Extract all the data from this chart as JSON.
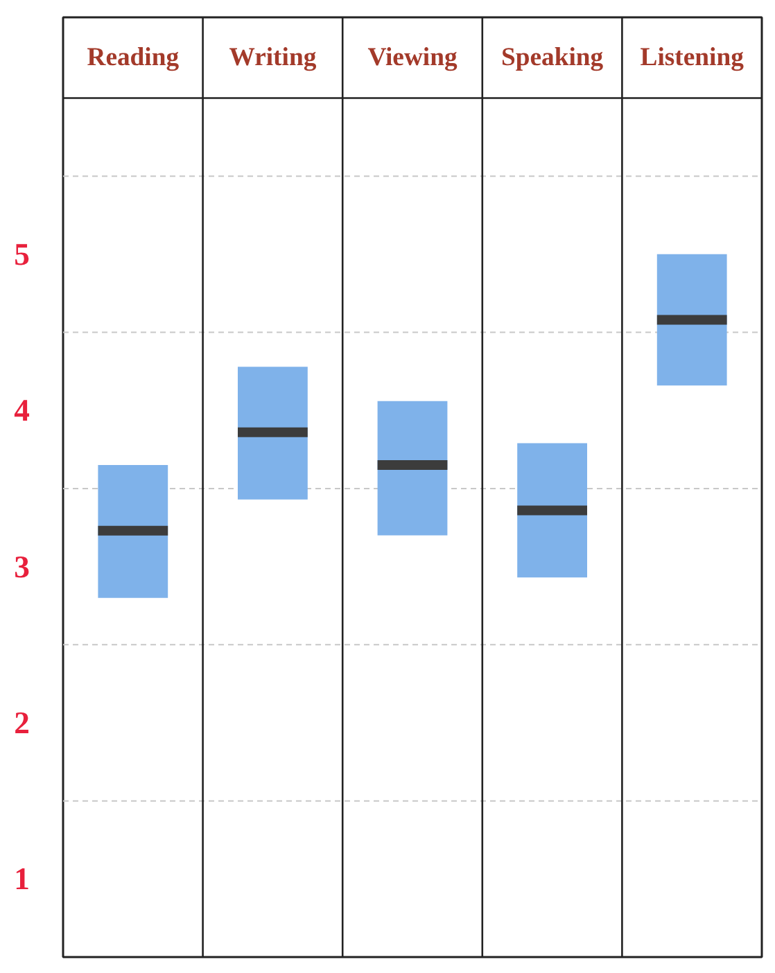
{
  "chart_data": {
    "type": "box",
    "categories": [
      "Reading",
      "Writing",
      "Viewing",
      "Speaking",
      "Listening"
    ],
    "series": [
      {
        "color": "#7fb2ea",
        "boxes": [
          {
            "low": 2.8,
            "q1": 2.8,
            "median": 3.23,
            "q3": 3.65,
            "high": 3.65
          },
          {
            "low": 3.43,
            "q1": 3.43,
            "median": 3.86,
            "q3": 4.28,
            "high": 4.28
          },
          {
            "low": 3.2,
            "q1": 3.2,
            "median": 3.65,
            "q3": 4.06,
            "high": 4.06
          },
          {
            "low": 2.93,
            "q1": 2.93,
            "median": 3.36,
            "q3": 3.79,
            "high": 3.79
          },
          {
            "low": 4.16,
            "q1": 4.16,
            "median": 4.58,
            "q3": 5.0,
            "high": 5.0
          }
        ]
      }
    ],
    "ylim": [
      0.5,
      6.0
    ],
    "yticks": [
      1,
      2,
      3,
      4,
      5
    ],
    "grid": false,
    "ref_lines": [
      {
        "axis": "y",
        "value": 1.5,
        "color": "#c8c8c8",
        "line_style": "dashed"
      },
      {
        "axis": "y",
        "value": 2.5,
        "color": "#c8c8c8",
        "line_style": "dashed"
      },
      {
        "axis": "y",
        "value": 3.5,
        "color": "#c8c8c8",
        "line_style": "dashed"
      },
      {
        "axis": "y",
        "value": 4.5,
        "color": "#c8c8c8",
        "line_style": "dashed"
      },
      {
        "axis": "y",
        "value": 5.5,
        "color": "#c8c8c8",
        "line_style": "dashed"
      }
    ]
  }
}
